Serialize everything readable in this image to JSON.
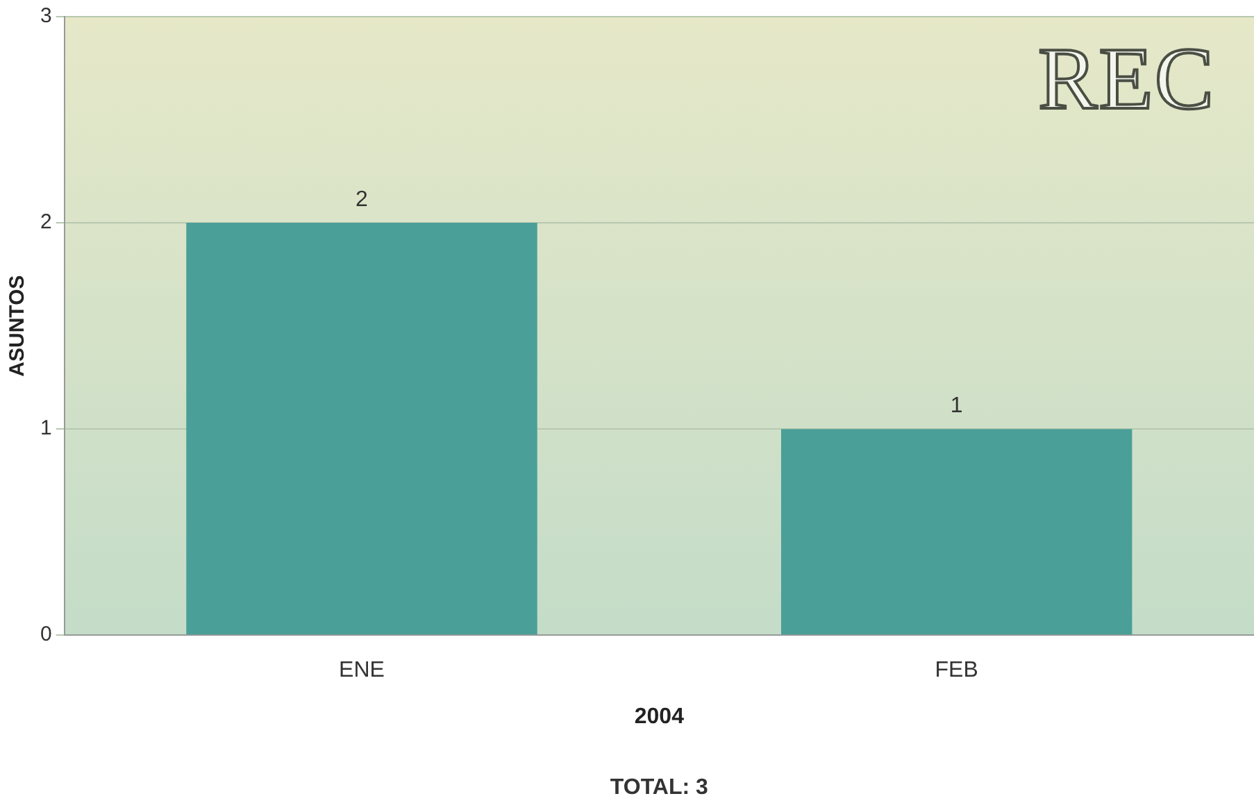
{
  "chart_data": {
    "type": "bar",
    "title": "REC",
    "xlabel": "2004",
    "ylabel": "ASUNTOS",
    "categories": [
      "ENE",
      "FEB"
    ],
    "values": [
      2,
      1
    ],
    "color": "#4a9f98",
    "ylim": [
      0,
      3
    ],
    "yticks": [
      0,
      1,
      2,
      3
    ],
    "grid": "y",
    "data_labels": true,
    "annotations": [
      "TOTAL: 3"
    ]
  }
}
